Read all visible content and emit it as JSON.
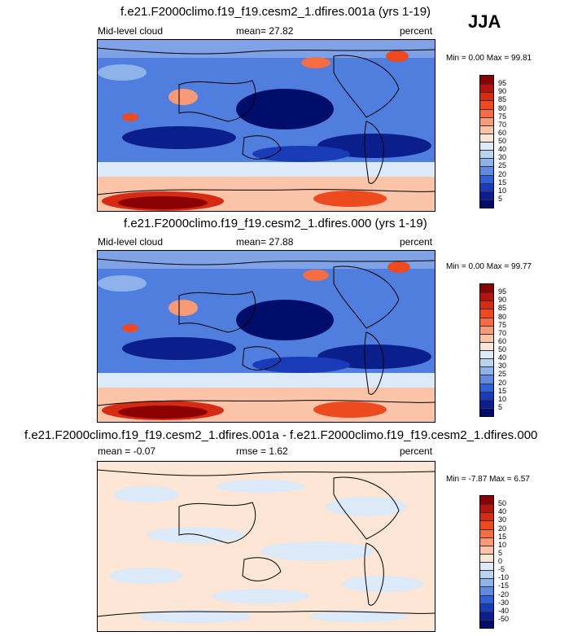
{
  "season": "JJA",
  "panels": [
    {
      "title": "f.e21.F2000climo.f19_f19.cesm2_1.dfires.001a (yrs 1-19)",
      "left_label": "Mid-level cloud",
      "center_label": "mean=  27.82",
      "right_label": "percent",
      "minmax": "Min =   0.00 Max =  99.81",
      "palette": "abs",
      "levels": [
        "95",
        "90",
        "85",
        "80",
        "75",
        "70",
        "60",
        "50",
        "40",
        "30",
        "25",
        "20",
        "15",
        "10",
        "5"
      ]
    },
    {
      "title": "f.e21.F2000climo.f19_f19.cesm2_1.dfires.000 (yrs 1-19)",
      "left_label": "Mid-level cloud",
      "center_label": "mean=  27.88",
      "right_label": "percent",
      "minmax": "Min =   0.00 Max =  99.77",
      "palette": "abs",
      "levels": [
        "95",
        "90",
        "85",
        "80",
        "75",
        "70",
        "60",
        "50",
        "40",
        "30",
        "25",
        "20",
        "15",
        "10",
        "5"
      ]
    },
    {
      "title": "f.e21.F2000climo.f19_f19.cesm2_1.dfires.001a - f.e21.F2000climo.f19_f19.cesm2_1.dfires.000",
      "left_label": "mean =  -0.07",
      "center_label": "rmse =   1.62",
      "right_label": "percent",
      "minmax": "Min =  -7.87 Max =   6.57",
      "palette": "diff",
      "levels": [
        "50",
        "40",
        "30",
        "20",
        "15",
        "10",
        "5",
        "0",
        "-5",
        "-10",
        "-15",
        "-20",
        "-30",
        "-40",
        "-50"
      ]
    }
  ],
  "colors": {
    "abs": [
      "#8b0000",
      "#b4140c",
      "#d72a12",
      "#ee4a1f",
      "#f46d43",
      "#f99a76",
      "#fbc3a8",
      "#fde6d5",
      "#dbe9f8",
      "#b9d3f0",
      "#8fb2ea",
      "#5f8ae2",
      "#3060d6",
      "#1a3bb8",
      "#0b1f8c",
      "#000d6b"
    ],
    "diff": [
      "#8b0000",
      "#b4140c",
      "#d72a12",
      "#ee4a1f",
      "#f46d43",
      "#f99a76",
      "#fbc3a8",
      "#fde6d5",
      "#dbe9f8",
      "#b9d3f0",
      "#8fb2ea",
      "#5f8ae2",
      "#3060d6",
      "#1a3bb8",
      "#0b1f8c",
      "#000d6b"
    ]
  }
}
